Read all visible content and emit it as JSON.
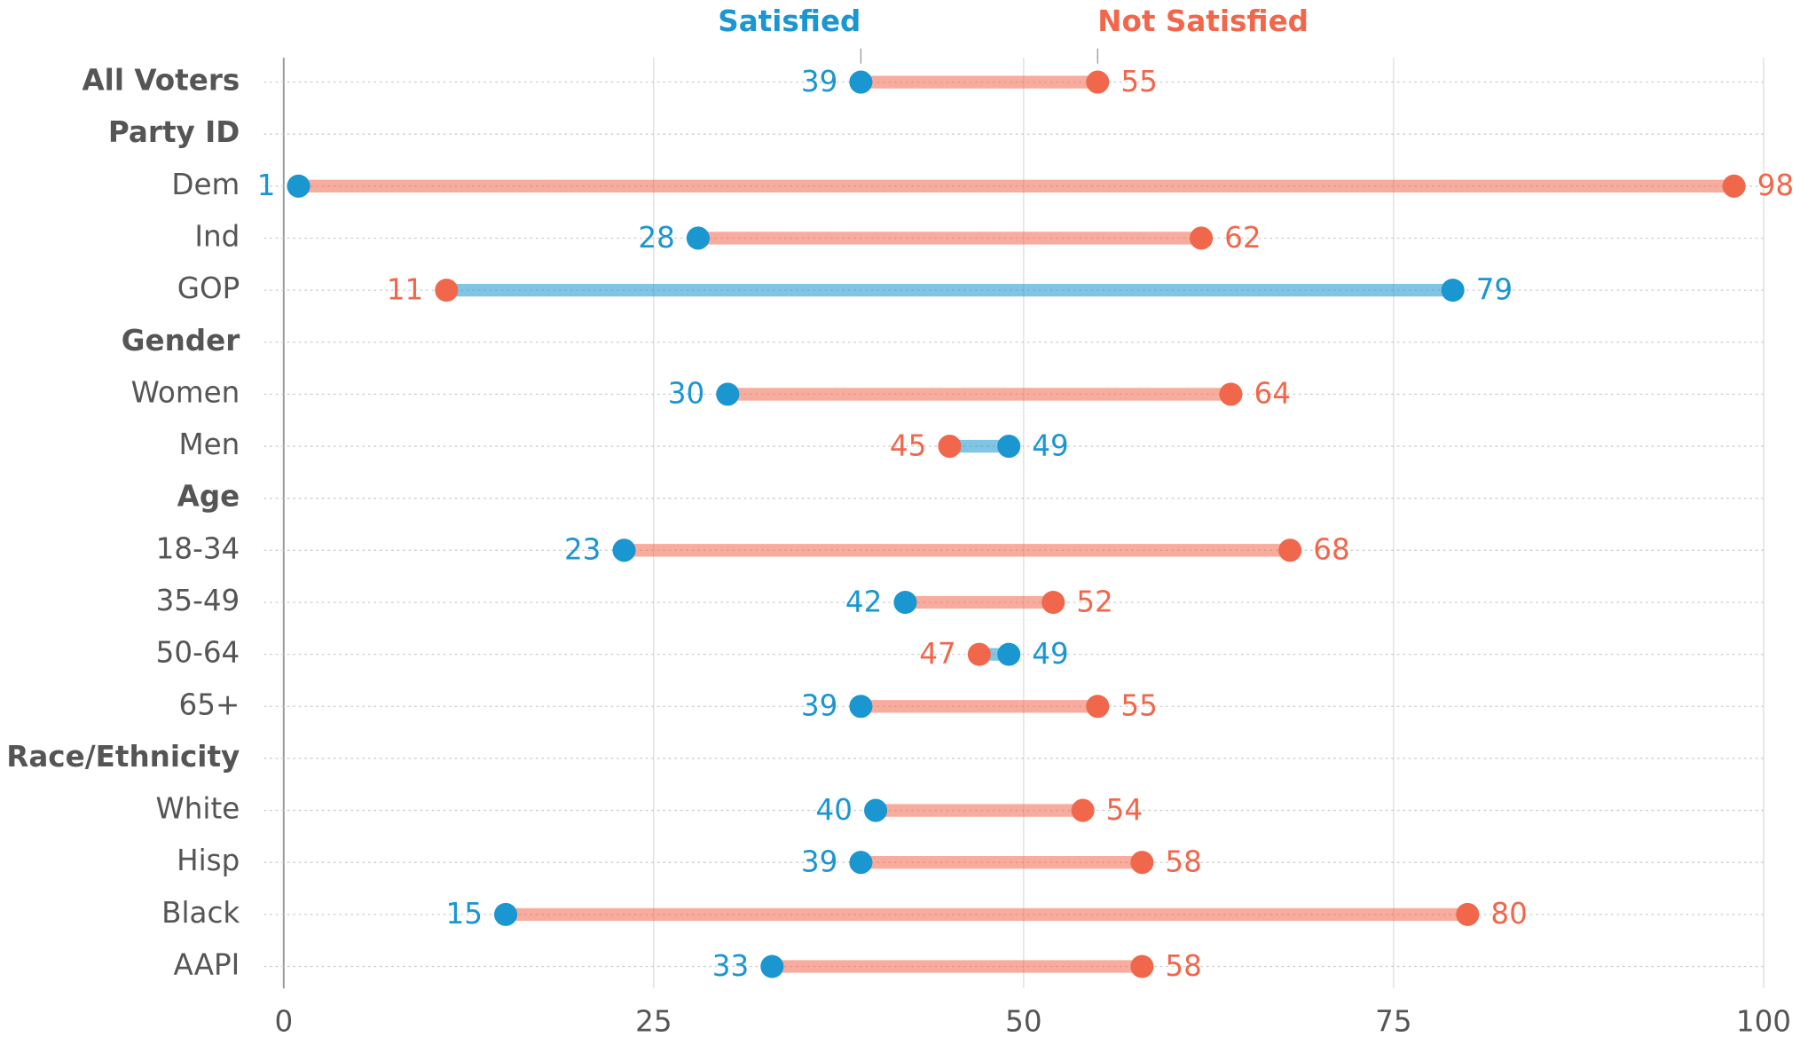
{
  "chart_data": {
    "type": "dumbbell",
    "categories": [
      "All Voters",
      "Party ID",
      "Dem",
      "Ind",
      "GOP",
      "Gender",
      "Women",
      "Men",
      "Age",
      "18-34",
      "35-49",
      "50-64",
      "65+",
      "Race/Ethnicity",
      "White",
      "Hisp",
      "Black",
      "AAPI"
    ],
    "bold": [
      true,
      true,
      false,
      false,
      false,
      true,
      false,
      false,
      true,
      false,
      false,
      false,
      false,
      true,
      false,
      false,
      false,
      false
    ],
    "series": [
      {
        "name": "Satisfied",
        "color": "#1a96d0",
        "values": [
          39,
          null,
          1,
          28,
          79,
          null,
          30,
          49,
          null,
          23,
          42,
          49,
          39,
          null,
          40,
          39,
          15,
          33
        ]
      },
      {
        "name": "Not Satisfied",
        "color": "#f0674c",
        "values": [
          55,
          null,
          98,
          62,
          11,
          null,
          64,
          45,
          null,
          68,
          52,
          47,
          55,
          null,
          54,
          58,
          80,
          58
        ]
      }
    ],
    "xlim": [
      0,
      100
    ],
    "xticks": [
      0,
      25,
      50,
      75,
      100
    ],
    "grid": true
  }
}
